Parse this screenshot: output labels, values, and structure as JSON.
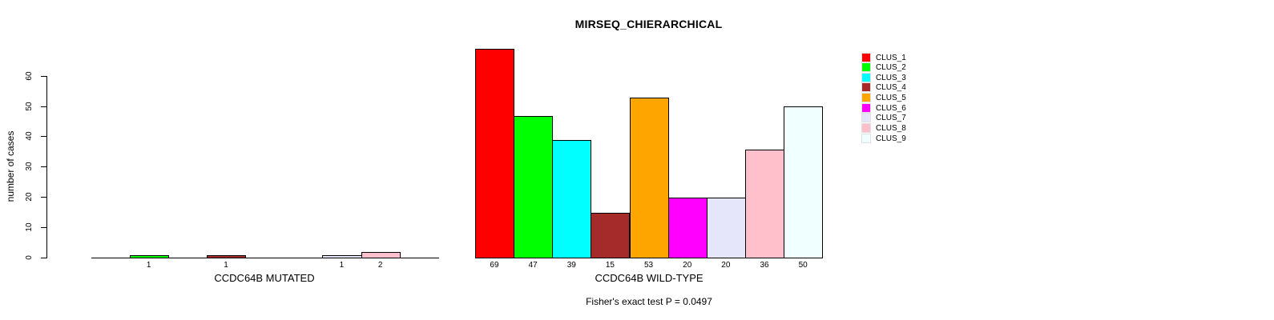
{
  "chart_data": {
    "type": "bar",
    "title": "MIRSEQ_CHIERARCHICAL",
    "ylabel": "number of cases",
    "ylim": [
      0,
      60
    ],
    "yticks": [
      0,
      10,
      20,
      30,
      40,
      50,
      60
    ],
    "grid": false,
    "legend_position": "right",
    "categories": [
      "CLUS_1",
      "CLUS_2",
      "CLUS_3",
      "CLUS_4",
      "CLUS_5",
      "CLUS_6",
      "CLUS_7",
      "CLUS_8",
      "CLUS_9"
    ],
    "colors": [
      "#FF0000",
      "#00FF00",
      "#00FFFF",
      "#A52A2A",
      "#FFA500",
      "#FF00FF",
      "#E6E6FA",
      "#FFC0CB",
      "#F0FFFF"
    ],
    "panels": [
      {
        "xlabel": "CCDC64B MUTATED",
        "values": [
          0,
          1,
          0,
          1,
          0,
          0,
          1,
          2,
          0
        ],
        "bar_labels": [
          "",
          "1",
          "",
          "1",
          "",
          "",
          "1",
          "2",
          ""
        ]
      },
      {
        "xlabel": "CCDC64B WILD-TYPE",
        "values": [
          69,
          47,
          39,
          15,
          53,
          20,
          20,
          36,
          50
        ],
        "bar_labels": [
          "69",
          "47",
          "39",
          "15",
          "53",
          "20",
          "20",
          "36",
          "50"
        ]
      }
    ],
    "note": "Fisher's exact test P = 0.0497"
  }
}
